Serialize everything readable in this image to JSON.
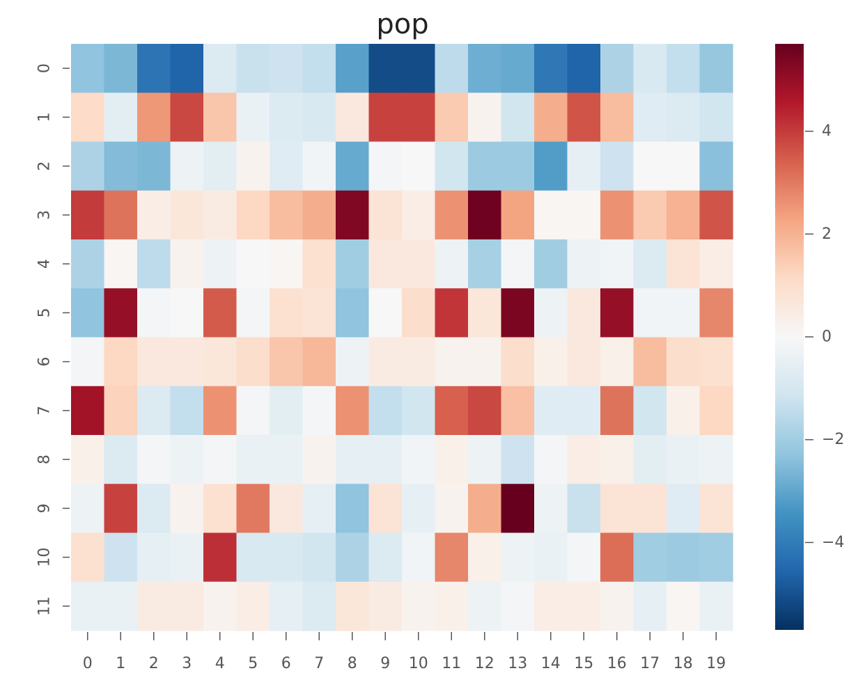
{
  "chart_data": {
    "type": "heatmap",
    "title": "pop",
    "colormap": "RdBu_r",
    "x_categories": [
      "0",
      "1",
      "2",
      "3",
      "4",
      "5",
      "6",
      "7",
      "8",
      "9",
      "10",
      "11",
      "12",
      "13",
      "14",
      "15",
      "16",
      "17",
      "18",
      "19"
    ],
    "y_categories": [
      "0",
      "1",
      "2",
      "3",
      "4",
      "5",
      "6",
      "7",
      "8",
      "9",
      "10",
      "11"
    ],
    "values": [
      [
        -2.3,
        -2.6,
        -4.2,
        -4.6,
        -0.8,
        -1.3,
        -1.2,
        -1.4,
        -3.1,
        -5.1,
        -5.1,
        -1.5,
        -2.8,
        -2.9,
        -4.1,
        -4.6,
        -1.8,
        -0.9,
        -1.4,
        -2.2
      ],
      [
        1.1,
        -0.6,
        2.5,
        3.8,
        1.6,
        -0.4,
        -0.8,
        -0.9,
        0.6,
        3.9,
        3.9,
        1.5,
        0.2,
        -1.1,
        2.1,
        3.6,
        1.8,
        -0.7,
        -0.8,
        -1.1
      ],
      [
        -1.8,
        -2.5,
        -2.6,
        -0.3,
        -0.6,
        0.2,
        -0.7,
        -0.2,
        -2.9,
        -0.1,
        0.0,
        -1.1,
        -2.1,
        -2.1,
        -3.2,
        -0.5,
        -1.2,
        0.0,
        0.0,
        -2.4
      ],
      [
        4.0,
        3.1,
        0.4,
        0.7,
        0.5,
        1.2,
        1.8,
        2.1,
        5.3,
        0.8,
        0.4,
        2.6,
        5.6,
        2.3,
        0.1,
        0.1,
        2.6,
        1.5,
        2.0,
        3.6
      ],
      [
        -1.8,
        0.1,
        -1.5,
        0.2,
        -0.3,
        0.0,
        0.1,
        0.9,
        -2.0,
        0.6,
        0.6,
        -0.3,
        -1.9,
        -0.1,
        -2.0,
        -0.3,
        -0.2,
        -0.8,
        0.8,
        0.4
      ],
      [
        -2.3,
        5.0,
        -0.1,
        0.0,
        3.5,
        -0.1,
        0.9,
        0.8,
        -2.3,
        0.0,
        1.0,
        4.1,
        0.7,
        5.4,
        -0.3,
        0.6,
        5.0,
        -0.2,
        -0.2,
        2.8
      ],
      [
        -0.1,
        1.2,
        0.6,
        0.6,
        0.7,
        1.0,
        1.6,
        1.9,
        -0.3,
        0.5,
        0.5,
        0.2,
        0.2,
        1.0,
        0.3,
        0.6,
        0.3,
        1.8,
        1.0,
        0.9
      ],
      [
        4.8,
        1.3,
        -0.8,
        -1.4,
        2.6,
        -0.1,
        -0.6,
        -0.1,
        2.6,
        -1.4,
        -1.1,
        3.4,
        3.8,
        1.7,
        -0.7,
        -0.7,
        3.1,
        -1.1,
        0.3,
        1.2
      ],
      [
        0.3,
        -0.8,
        -0.1,
        -0.3,
        -0.1,
        -0.4,
        -0.4,
        0.2,
        -0.5,
        -0.5,
        -0.2,
        0.3,
        -0.3,
        -1.2,
        -0.1,
        0.4,
        0.3,
        -0.6,
        -0.4,
        -0.3
      ],
      [
        -0.3,
        3.9,
        -0.8,
        0.2,
        0.9,
        3.0,
        0.6,
        -0.5,
        -2.3,
        0.8,
        -0.5,
        0.2,
        2.1,
        5.8,
        -0.3,
        -1.3,
        0.8,
        0.8,
        -0.7,
        0.8
      ],
      [
        0.9,
        -1.2,
        -0.5,
        -0.4,
        4.2,
        -0.9,
        -0.9,
        -1.1,
        -1.8,
        -0.8,
        -0.2,
        2.8,
        0.3,
        -0.3,
        -0.4,
        -0.1,
        3.2,
        -2.0,
        -2.1,
        -2.0
      ],
      [
        -0.4,
        -0.4,
        0.5,
        0.5,
        0.2,
        0.4,
        -0.5,
        -0.8,
        0.7,
        0.5,
        0.2,
        0.3,
        -0.3,
        -0.1,
        0.4,
        0.4,
        0.2,
        -0.5,
        0.1,
        -0.4
      ]
    ],
    "colorbar": {
      "range": [
        -5.7,
        5.7
      ],
      "ticks": [
        4,
        2,
        0,
        -2,
        -4
      ],
      "tick_labels": [
        "4",
        "2",
        "0",
        "−2",
        "−4"
      ]
    }
  }
}
